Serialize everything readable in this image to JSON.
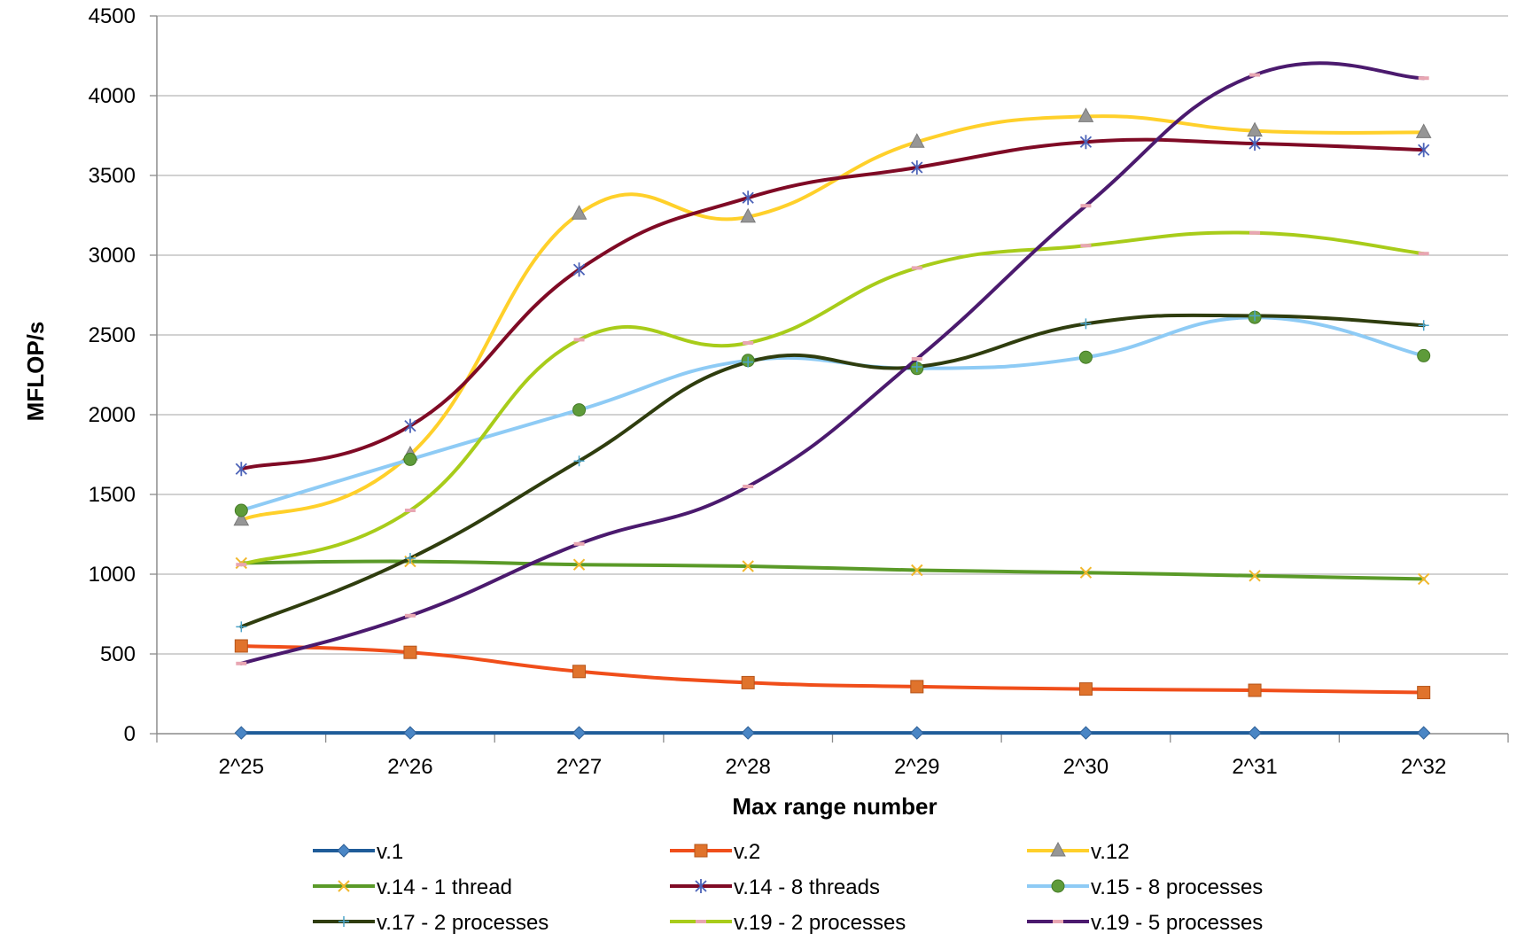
{
  "chart_data": {
    "type": "line",
    "title": "",
    "xlabel": "Max range number",
    "ylabel": "MFLOP/s",
    "ylim": [
      0,
      4500
    ],
    "yticks": [
      0,
      500,
      1000,
      1500,
      2000,
      2500,
      3000,
      3500,
      4000,
      4500
    ],
    "categories": [
      "2^25",
      "2^26",
      "2^27",
      "2^28",
      "2^29",
      "2^30",
      "2^31",
      "2^32"
    ],
    "grid": "horizontal",
    "legend_position": "bottom",
    "series": [
      {
        "name": "v.1",
        "color": "#1f5c99",
        "marker": "diamond",
        "values": [
          5,
          5,
          5,
          5,
          5,
          5,
          5,
          5
        ]
      },
      {
        "name": "v.2",
        "color": "#f04e1a",
        "marker": "square",
        "values": [
          550,
          510,
          390,
          320,
          295,
          280,
          272,
          258
        ]
      },
      {
        "name": "v.12",
        "color": "#ffd02a",
        "marker": "triangle",
        "values": [
          1340,
          1750,
          3260,
          3240,
          3710,
          3870,
          3780,
          3770
        ]
      },
      {
        "name": "v.14 - 1 thread",
        "color": "#5a9a28",
        "marker": "x",
        "values": [
          1070,
          1080,
          1060,
          1050,
          1025,
          1010,
          990,
          970
        ]
      },
      {
        "name": "v.14 - 8 threads",
        "color": "#7f0a25",
        "marker": "star",
        "values": [
          1660,
          1930,
          2910,
          3360,
          3550,
          3710,
          3700,
          3660
        ]
      },
      {
        "name": "v.15 - 8 processes",
        "color": "#8ecbf5",
        "marker": "circle",
        "values": [
          1400,
          1720,
          2030,
          2340,
          2290,
          2360,
          2610,
          2370
        ]
      },
      {
        "name": "v.17 - 2 processes",
        "color": "#2f3d0e",
        "marker": "plus",
        "values": [
          670,
          1100,
          1710,
          2330,
          2300,
          2570,
          2620,
          2560
        ]
      },
      {
        "name": "v.19 - 2 processes",
        "color": "#a8cc1a",
        "marker": "dash",
        "values": [
          1060,
          1400,
          2470,
          2450,
          2920,
          3060,
          3140,
          3010
        ]
      },
      {
        "name": "v.19 - 5 processes",
        "color": "#4b1a6e",
        "marker": "dash",
        "values": [
          440,
          740,
          1190,
          1550,
          2350,
          3310,
          4130,
          4110
        ]
      }
    ]
  }
}
